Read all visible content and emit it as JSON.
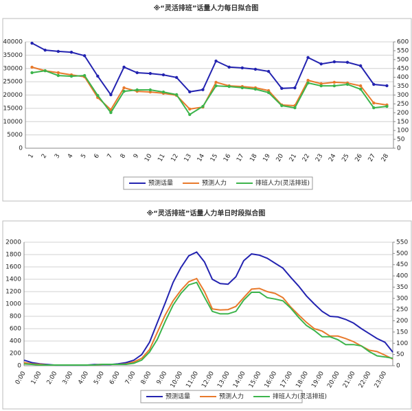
{
  "chart_data": [
    {
      "type": "line",
      "title": "※“灵活排班”话量人力每日拟合图",
      "categories": [
        "1",
        "2",
        "3",
        "4",
        "5",
        "6",
        "7",
        "8",
        "9",
        "10",
        "11",
        "12",
        "13",
        "14",
        "15",
        "16",
        "17",
        "18",
        "19",
        "20",
        "21",
        "22",
        "23",
        "24",
        "25",
        "26",
        "27",
        "28"
      ],
      "series": [
        {
          "name": "预测话量",
          "color": "#2323b0",
          "values": [
            39500,
            36900,
            36400,
            36100,
            34800,
            27100,
            20100,
            30500,
            28400,
            28100,
            27600,
            26600,
            21200,
            22000,
            32800,
            30500,
            30200,
            29700,
            28900,
            22500,
            22700,
            34100,
            31700,
            32500,
            32300,
            31000,
            24000,
            23500
          ]
        },
        {
          "name": "预测人力",
          "color": "#e8792b",
          "axis": "y2",
          "values": [
            457,
            437,
            426,
            414,
            403,
            286,
            217,
            341,
            321,
            317,
            310,
            298,
            221,
            232,
            372,
            352,
            348,
            341,
            325,
            244,
            240,
            383,
            364,
            372,
            368,
            352,
            255,
            244
          ]
        },
        {
          "name": "排班人力(灵活排班)",
          "color": "#3cb44b",
          "axis": "y2",
          "values": [
            426,
            437,
            410,
            406,
            410,
            298,
            201,
            321,
            329,
            329,
            317,
            302,
            190,
            236,
            352,
            348,
            341,
            333,
            314,
            240,
            228,
            368,
            352,
            352,
            360,
            333,
            228,
            236
          ]
        }
      ],
      "ylim": [
        0,
        40000
      ],
      "yticks": [
        0,
        5000,
        10000,
        15000,
        20000,
        25000,
        30000,
        35000,
        40000
      ],
      "y2lim": [
        0,
        600
      ],
      "y2ticks": [
        0,
        50,
        100,
        150,
        200,
        250,
        300,
        350,
        400,
        450,
        500,
        550,
        600
      ],
      "grid": true,
      "legend": "bottom"
    },
    {
      "type": "line",
      "title": "※“灵活排班”话量人力单日时段拟合图",
      "categories": [
        "0:00",
        null,
        "1:00",
        null,
        "2:00",
        null,
        "3:00",
        null,
        "4:00",
        null,
        "5:00",
        null,
        "6:00",
        null,
        "7:00",
        null,
        "8:00",
        null,
        "9:00",
        null,
        "10:00",
        null,
        "11:00",
        null,
        "12:00",
        null,
        "13:00",
        null,
        "14:00",
        null,
        "15:00",
        null,
        "16:00",
        null,
        "17:00",
        null,
        "18:00",
        null,
        "19:00",
        null,
        "20:00",
        null,
        "21:00",
        null,
        "22:00",
        null,
        "23:00",
        null
      ],
      "series": [
        {
          "name": "预测话量",
          "color": "#2323b0",
          "values": [
            90,
            50,
            30,
            20,
            10,
            10,
            10,
            10,
            10,
            20,
            20,
            20,
            30,
            50,
            90,
            180,
            380,
            700,
            1020,
            1350,
            1590,
            1780,
            1840,
            1680,
            1400,
            1330,
            1320,
            1440,
            1700,
            1810,
            1790,
            1740,
            1660,
            1580,
            1430,
            1290,
            1130,
            1000,
            880,
            800,
            790,
            750,
            690,
            600,
            520,
            440,
            380,
            220
          ]
        },
        {
          "name": "预测人力",
          "color": "#e8792b",
          "axis": "y2",
          "values": [
            14,
            8,
            6,
            3,
            3,
            3,
            3,
            3,
            3,
            3,
            6,
            6,
            6,
            8,
            17,
            33,
            72,
            149,
            226,
            289,
            336,
            374,
            388,
            330,
            253,
            248,
            250,
            264,
            303,
            341,
            344,
            330,
            322,
            303,
            261,
            226,
            193,
            165,
            154,
            132,
            132,
            121,
            107,
            88,
            69,
            63,
            47,
            30
          ]
        },
        {
          "name": "排班人力(灵活排班)",
          "color": "#3cb44b",
          "axis": "y2",
          "values": [
            8,
            6,
            3,
            3,
            3,
            3,
            3,
            3,
            3,
            3,
            6,
            6,
            6,
            6,
            11,
            25,
            61,
            118,
            198,
            270,
            322,
            360,
            371,
            305,
            242,
            231,
            231,
            242,
            292,
            327,
            327,
            303,
            297,
            289,
            256,
            215,
            179,
            157,
            129,
            129,
            116,
            94,
            94,
            88,
            63,
            44,
            39,
            33
          ]
        }
      ],
      "ylim": [
        0,
        2000
      ],
      "yticks": [
        0,
        200,
        400,
        600,
        800,
        1000,
        1200,
        1400,
        1600,
        1800,
        2000
      ],
      "y2lim": [
        0,
        550
      ],
      "y2ticks": [
        0,
        50,
        100,
        150,
        200,
        250,
        300,
        350,
        400,
        450,
        500,
        550
      ],
      "grid": true,
      "legend": "bottom"
    }
  ]
}
